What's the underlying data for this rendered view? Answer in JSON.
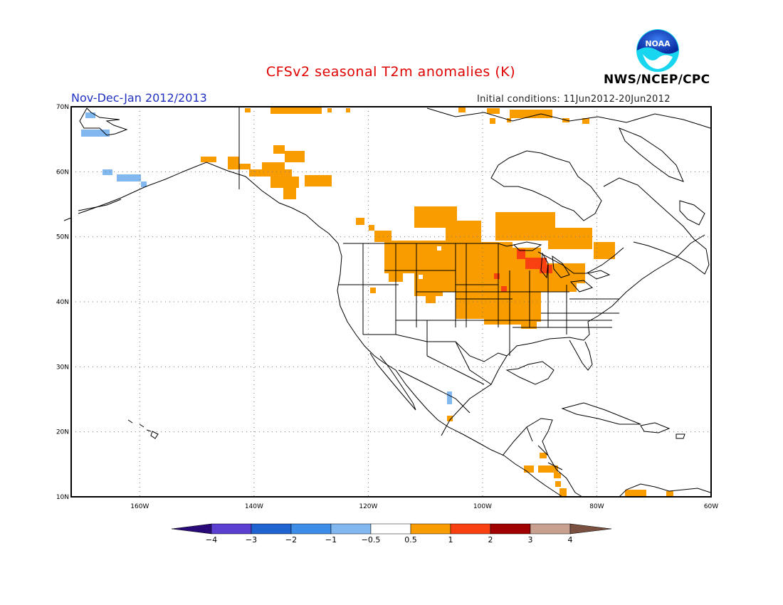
{
  "title": "CFSv2 seasonal T2m anomalies (K)",
  "period": "Nov-Dec-Jan 2012/2013",
  "agency": "NWS/NCEP/CPC",
  "logo_text": "NOAA",
  "initial_conditions": "Initial conditions: 11Jun2012-20Jun2012",
  "map": {
    "lon_range": [
      -172,
      -60
    ],
    "lat_range": [
      10,
      70
    ],
    "lat_labels": [
      "70N",
      "60N",
      "50N",
      "40N",
      "30N",
      "20N",
      "10N"
    ],
    "lon_labels": [
      "160W",
      "140W",
      "120W",
      "100W",
      "80W",
      "60W"
    ],
    "grid": "dotted"
  },
  "colorbar": {
    "tick_labels": [
      "−4",
      "−3",
      "−2",
      "−1",
      "−0.5",
      "0.5",
      "1",
      "2",
      "3",
      "4"
    ],
    "colors": [
      "#2a0a78",
      "#5a3fd0",
      "#1f63d0",
      "#3c8ce8",
      "#82b8f0",
      "#ffffff",
      "#f89c00",
      "#f84010",
      "#a00000",
      "#c8a090",
      "#7a5040"
    ]
  },
  "anomaly_colors": {
    "light_blue": "#82b8f0",
    "orange": "#f89c00",
    "red": "#f84010"
  }
}
